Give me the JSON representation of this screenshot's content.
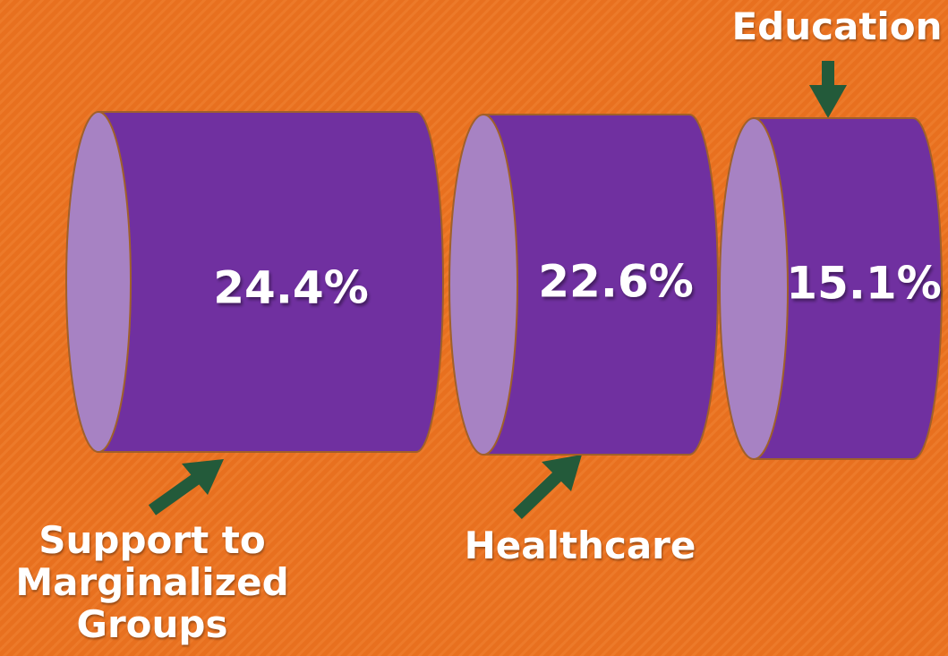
{
  "chart_data": {
    "type": "cylinder",
    "categories": [
      "Support to Marginalized Groups",
      "Healthcare",
      "Education"
    ],
    "values": [
      24.4,
      22.6,
      15.1
    ],
    "value_labels": [
      "24.4%",
      "22.6%",
      "15.1%"
    ],
    "color": "#7030a0"
  }
}
